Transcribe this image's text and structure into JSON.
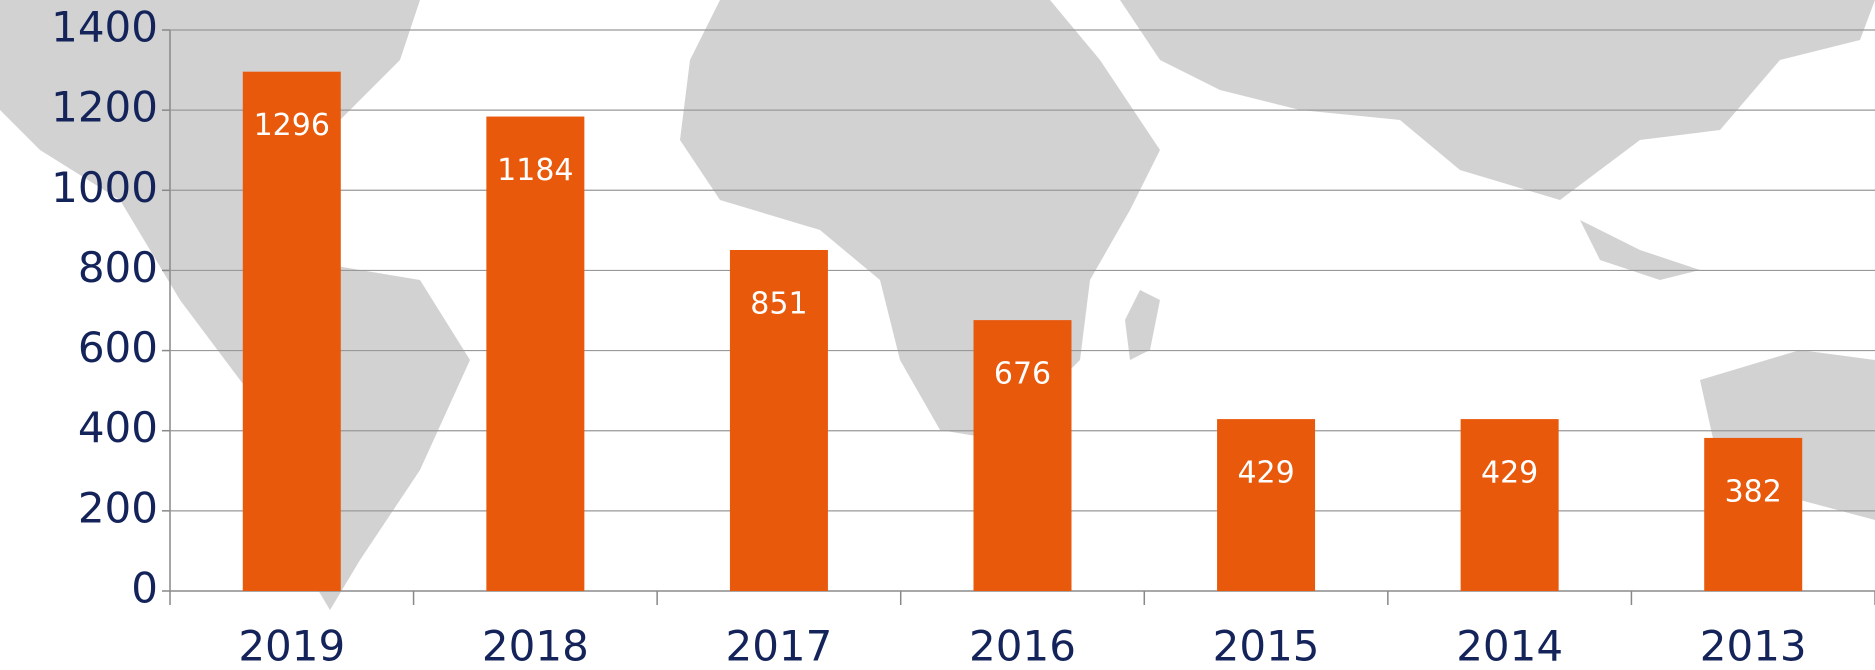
{
  "chart_data": {
    "type": "bar",
    "categories": [
      "2019",
      "2018",
      "2017",
      "2016",
      "2015",
      "2014",
      "2013"
    ],
    "values": [
      1296,
      1184,
      851,
      676,
      429,
      429,
      382
    ],
    "color": "#e8590c",
    "ylim": [
      0,
      1400
    ],
    "yticks": [
      0,
      200,
      400,
      600,
      800,
      1000,
      1200,
      1400
    ],
    "grid": true
  }
}
